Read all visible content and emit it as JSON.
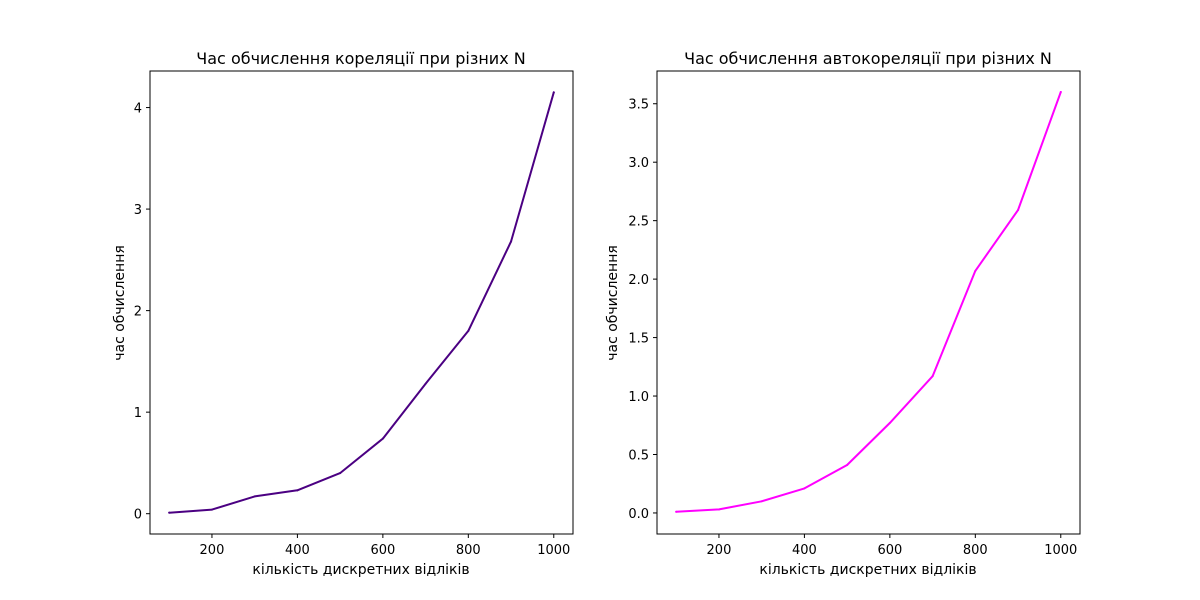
{
  "chart_data": [
    {
      "type": "line",
      "title": "Час обчислення кореляції при різних N",
      "xlabel": "кількість дискретних відліків",
      "ylabel": "час обчислення",
      "xlim": [
        55,
        1045
      ],
      "ylim": [
        -0.2,
        4.36
      ],
      "x_ticks": [
        200,
        400,
        600,
        800,
        1000
      ],
      "y_ticks": [
        0,
        1,
        2,
        3,
        4
      ],
      "y_tick_labels": [
        "0",
        "1",
        "2",
        "3",
        "4"
      ],
      "grid": false,
      "series": [
        {
          "color": "#4b0082",
          "x": [
            100,
            200,
            300,
            400,
            500,
            600,
            700,
            800,
            900,
            1000
          ],
          "y": [
            0.01,
            0.04,
            0.17,
            0.23,
            0.4,
            0.74,
            1.28,
            1.8,
            2.68,
            4.15
          ]
        }
      ]
    },
    {
      "type": "line",
      "title": "Час обчислення автокореляції при різних N",
      "xlabel": "кількість дискретних відліків",
      "ylabel": "час обчислення",
      "xlim": [
        55,
        1045
      ],
      "ylim": [
        -0.18,
        3.78
      ],
      "x_ticks": [
        200,
        400,
        600,
        800,
        1000
      ],
      "y_ticks": [
        0,
        0.5,
        1,
        1.5,
        2,
        2.5,
        3,
        3.5
      ],
      "y_tick_labels": [
        "0.0",
        "0.5",
        "1.0",
        "1.5",
        "2.0",
        "2.5",
        "3.0",
        "3.5"
      ],
      "grid": false,
      "series": [
        {
          "color": "#ff00ff",
          "x": [
            100,
            200,
            300,
            400,
            500,
            600,
            700,
            800,
            900,
            1000
          ],
          "y": [
            0.01,
            0.03,
            0.1,
            0.21,
            0.41,
            0.77,
            1.17,
            2.07,
            2.59,
            3.6
          ]
        }
      ]
    }
  ]
}
